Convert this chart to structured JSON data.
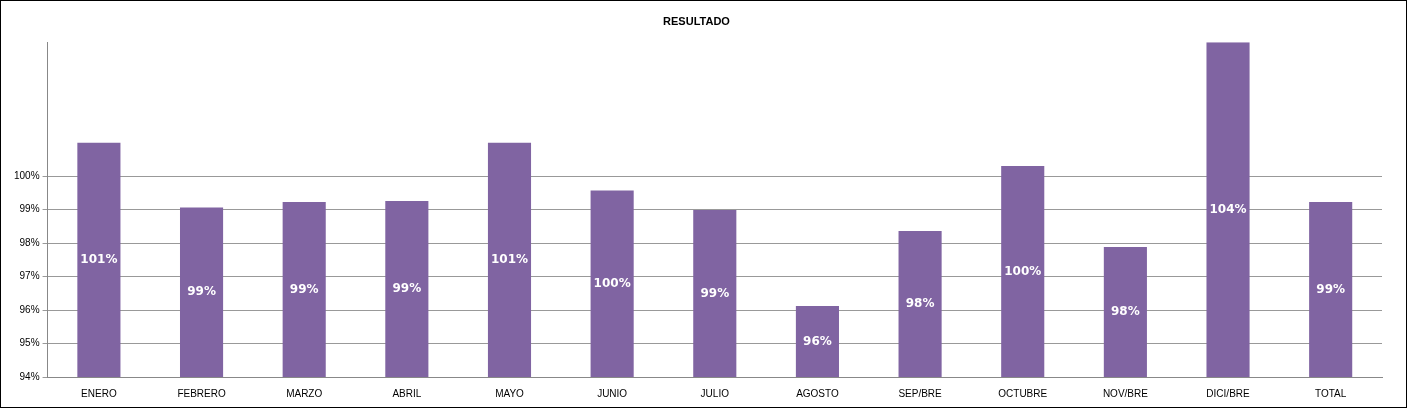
{
  "chart_data": {
    "type": "bar",
    "title": "RESULTADO",
    "categories": [
      "ENERO",
      "FEBRERO",
      "MARZO",
      "ABRIL",
      "MAYO",
      "JUNIO",
      "JULIO",
      "AGOSTO",
      "SEP/BRE",
      "OCTUBRE",
      "NOV/BRE",
      "DICI/BRE",
      "TOTAL"
    ],
    "values": [
      101,
      99.06,
      99.23,
      99.26,
      101,
      99.57,
      98.99,
      96.12,
      98.36,
      100.3,
      97.88,
      104,
      99.23
    ],
    "value_labels": [
      "101%",
      "99%",
      "99%",
      "99%",
      "101%",
      "100%",
      "99%",
      "96%",
      "98%",
      "100%",
      "98%",
      "104%",
      "99%"
    ],
    "color": "#8064a2",
    "ylim": [
      94,
      104
    ],
    "yticks": [
      {
        "value": 94,
        "label": "94%"
      },
      {
        "value": 95,
        "label": "95%"
      },
      {
        "value": 96,
        "label": "96%"
      },
      {
        "value": 97,
        "label": "97%"
      },
      {
        "value": 98,
        "label": "98%"
      },
      {
        "value": 99,
        "label": "99%"
      },
      {
        "value": 100,
        "label": "100%"
      }
    ],
    "grid": "y",
    "legend": false
  }
}
